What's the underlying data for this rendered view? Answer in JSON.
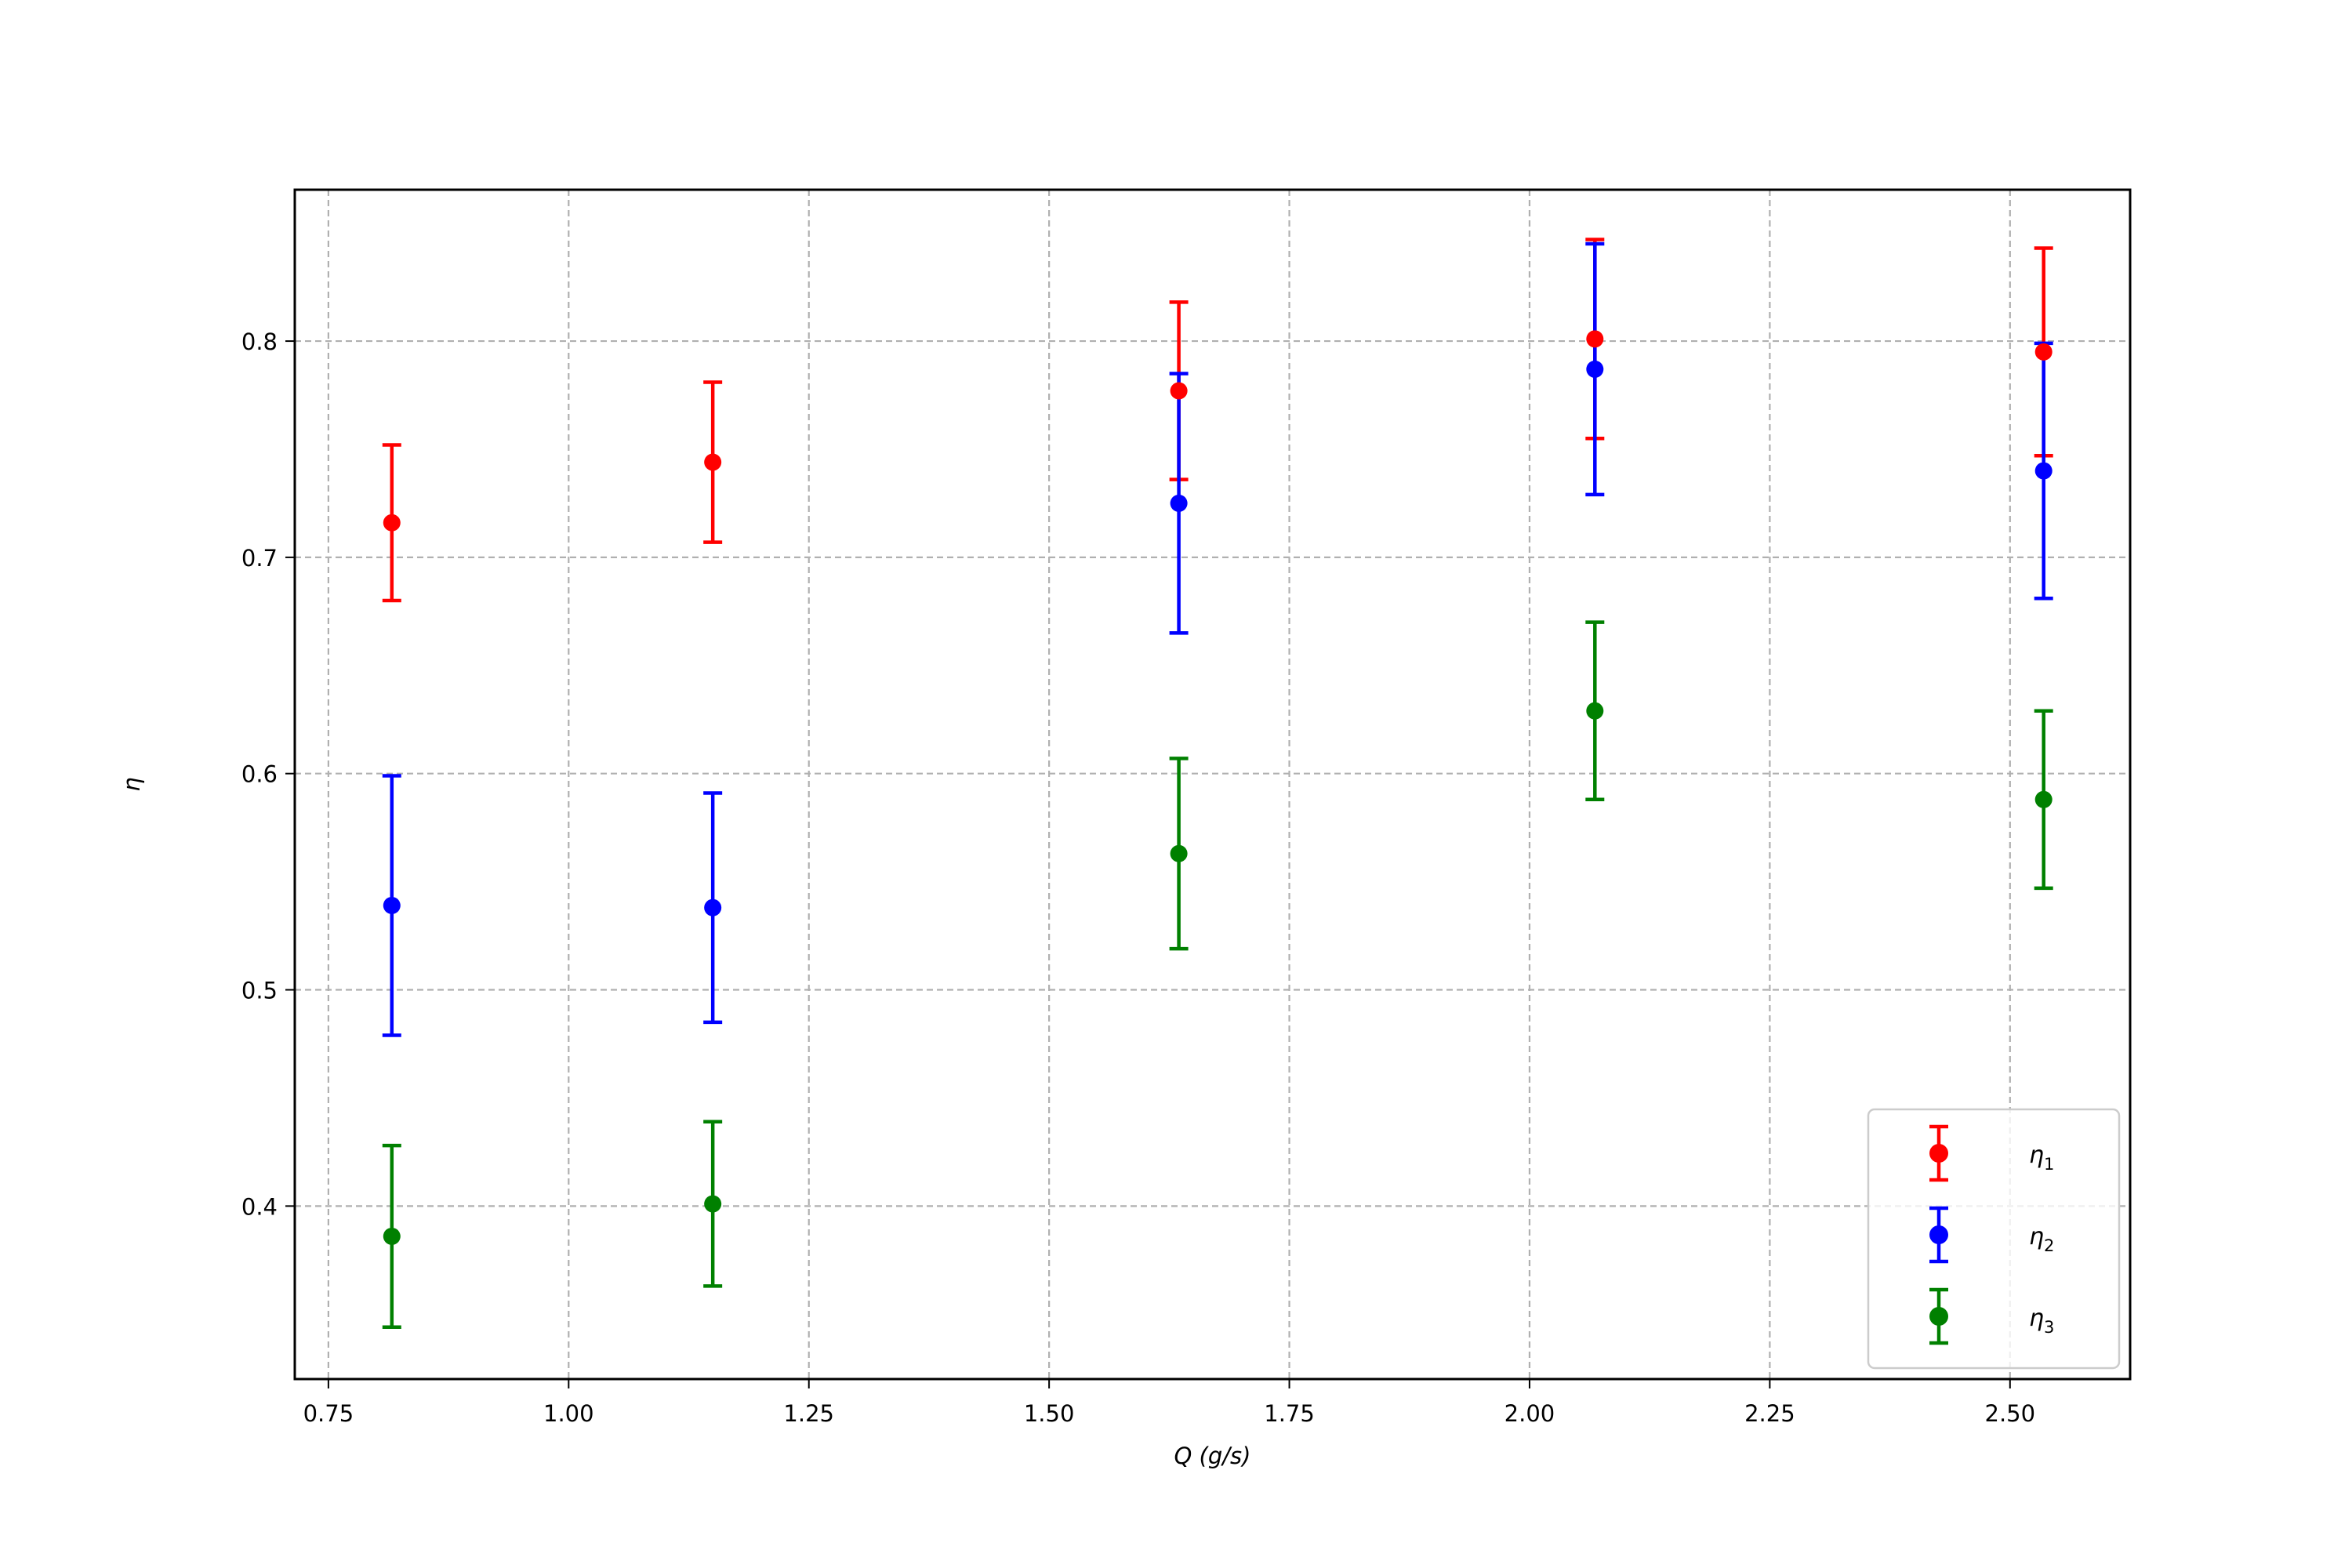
{
  "chart_data": {
    "type": "scatter",
    "error_bars": true,
    "xlabel": "Q (g/s)",
    "ylabel": "η",
    "xlim": [
      0.715,
      2.625
    ],
    "ylim": [
      0.32,
      0.87
    ],
    "xticks": [
      0.75,
      1.0,
      1.25,
      1.5,
      1.75,
      2.0,
      2.25,
      2.5
    ],
    "xtick_labels": [
      "0.75",
      "1.00",
      "1.25",
      "1.50",
      "1.75",
      "2.00",
      "2.25",
      "2.50"
    ],
    "yticks": [
      0.4,
      0.5,
      0.6,
      0.7,
      0.8
    ],
    "ytick_labels": [
      "0.4",
      "0.5",
      "0.6",
      "0.7",
      "0.8"
    ],
    "grid": true,
    "legend_position": "lower-right",
    "x": [
      0.816,
      1.15,
      1.635,
      2.068,
      2.535
    ],
    "series": [
      {
        "name": "η1",
        "legend_symbol": "η",
        "legend_subscript": "1",
        "color": "#ff0000",
        "y": [
          0.716,
          0.744,
          0.777,
          0.801,
          0.795
        ],
        "yerr": [
          0.036,
          0.037,
          0.041,
          0.046,
          0.048
        ]
      },
      {
        "name": "η2",
        "legend_symbol": "η",
        "legend_subscript": "2",
        "color": "#0000ff",
        "y": [
          0.539,
          0.538,
          0.725,
          0.787,
          0.74
        ],
        "yerr": [
          0.06,
          0.053,
          0.06,
          0.058,
          0.059
        ]
      },
      {
        "name": "η3",
        "legend_symbol": "η",
        "legend_subscript": "3",
        "color": "#008000",
        "y": [
          0.386,
          0.401,
          0.563,
          0.629,
          0.588
        ],
        "yerr": [
          0.042,
          0.038,
          0.044,
          0.041,
          0.041
        ]
      }
    ]
  }
}
